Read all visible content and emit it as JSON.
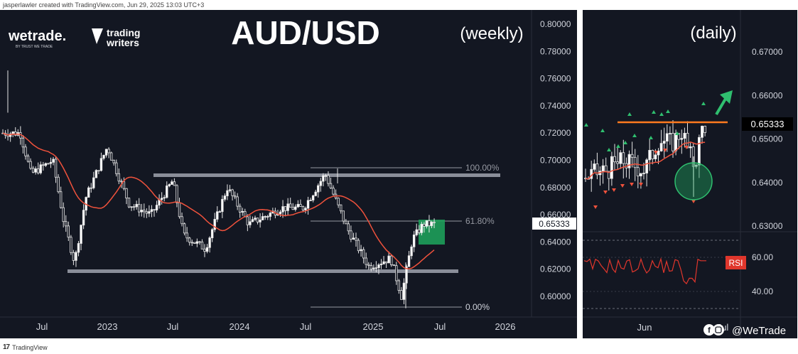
{
  "header": {
    "caption": "jasperlawler created with TradingView.com,  Jun 29, 2025 13:03 UTC+3"
  },
  "footer": {
    "logo": "17",
    "label": "TradingView"
  },
  "brand": {
    "wetrade": "wetrade.",
    "wetrade_tag": "BY TRUST WE TRADE",
    "tw_line1": "trading",
    "tw_line2": "writers",
    "social": "@WeTrade"
  },
  "weekly": {
    "title": "AUD/USD",
    "subtitle": "(weekly)",
    "price_ticks": [
      "0.80000",
      "0.78000",
      "0.76000",
      "0.74000",
      "0.72000",
      "0.70000",
      "0.68000",
      "0.66000",
      "0.64000",
      "0.62000",
      "0.60000"
    ],
    "time_labels": [
      "Jul",
      "2023",
      "Jul",
      "2024",
      "Jul",
      "2025",
      "Jul",
      "2026"
    ],
    "fib_100": "100.00%",
    "fib_618": "61.80%",
    "fib_0": "0.00%",
    "current_price": "0.65333"
  },
  "daily": {
    "subtitle": "(daily)",
    "price_ticks": [
      "0.67000",
      "0.66000",
      "0.65000",
      "0.64000",
      "0.63000"
    ],
    "current_price": "0.65333",
    "time_labels": [
      "Jun",
      "Jul"
    ],
    "rsi_label": "RSI",
    "rsi_ticks": [
      "60.00",
      "40.00"
    ]
  },
  "chart_data": [
    {
      "type": "candlestick",
      "symbol": "AUD/USD",
      "timeframe": "weekly",
      "ylim": [
        0.59,
        0.81
      ],
      "last_price": 0.65333,
      "support_zone": 0.618,
      "resistance_zone": 0.689,
      "fibonacci": {
        "100.00%": 0.6943,
        "61.80%": 0.6553,
        "0.00%": 0.5913
      },
      "moving_average_last": 0.633,
      "close_path": [
        {
          "t": "2022-05",
          "v": 0.72
        },
        {
          "t": "2022-06",
          "v": 0.69
        },
        {
          "t": "2022-08",
          "v": 0.7
        },
        {
          "t": "2022-09",
          "v": 0.655
        },
        {
          "t": "2022-10",
          "v": 0.625
        },
        {
          "t": "2022-11",
          "v": 0.672
        },
        {
          "t": "2023-01",
          "v": 0.71
        },
        {
          "t": "2023-03",
          "v": 0.668
        },
        {
          "t": "2023-05",
          "v": 0.66
        },
        {
          "t": "2023-07",
          "v": 0.685
        },
        {
          "t": "2023-08",
          "v": 0.645
        },
        {
          "t": "2023-10",
          "v": 0.635
        },
        {
          "t": "2023-12",
          "v": 0.68
        },
        {
          "t": "2024-02",
          "v": 0.653
        },
        {
          "t": "2024-05",
          "v": 0.665
        },
        {
          "t": "2024-07",
          "v": 0.665
        },
        {
          "t": "2024-09",
          "v": 0.69
        },
        {
          "t": "2024-11",
          "v": 0.65
        },
        {
          "t": "2025-01",
          "v": 0.622
        },
        {
          "t": "2025-03",
          "v": 0.628
        },
        {
          "t": "2025-04",
          "v": 0.6
        },
        {
          "t": "2025-05",
          "v": 0.642
        },
        {
          "t": "2025-06",
          "v": 0.653
        }
      ]
    },
    {
      "type": "candlestick",
      "symbol": "AUD/USD",
      "timeframe": "daily",
      "ylim": [
        0.628,
        0.677
      ],
      "last_price": 0.65333,
      "resistance_line": 0.6535,
      "close_path": [
        {
          "t": "2025-05-01",
          "v": 0.641
        },
        {
          "t": "2025-05-12",
          "v": 0.643
        },
        {
          "t": "2025-05-20",
          "v": 0.645
        },
        {
          "t": "2025-05-30",
          "v": 0.643
        },
        {
          "t": "2025-06-06",
          "v": 0.65
        },
        {
          "t": "2025-06-12",
          "v": 0.649
        },
        {
          "t": "2025-06-17",
          "v": 0.652
        },
        {
          "t": "2025-06-20",
          "v": 0.647
        },
        {
          "t": "2025-06-23",
          "v": 0.644
        },
        {
          "t": "2025-06-27",
          "v": 0.6533
        }
      ],
      "rsi": {
        "ylim": [
          30,
          70
        ],
        "levels": [
          60,
          40
        ],
        "last": 58
      }
    }
  ]
}
